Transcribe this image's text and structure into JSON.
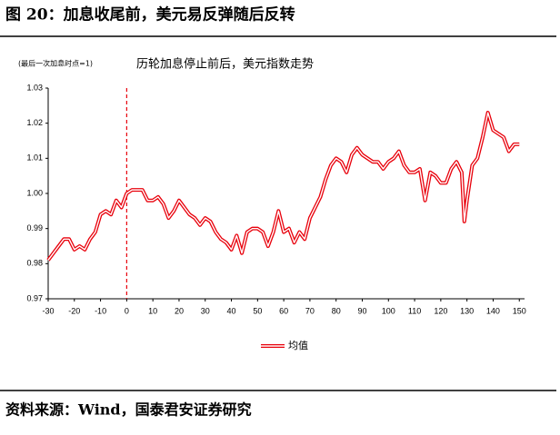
{
  "chart_data": {
    "type": "line",
    "title": "图 20：加息收尾前，美元易反弹随后反转",
    "subtitle": "历轮加息停止前后，美元指数走势",
    "annotation": "(最后一次加息时点=1)",
    "source": "资料来源：Wind，国泰君安证券研究",
    "marker_x": 0,
    "x": [
      -30,
      -28,
      -26,
      -24,
      -22,
      -20,
      -18,
      -16,
      -14,
      -12,
      -10,
      -8,
      -6,
      -4,
      -2,
      0,
      2,
      4,
      6,
      8,
      10,
      12,
      14,
      16,
      18,
      20,
      22,
      24,
      26,
      28,
      30,
      32,
      34,
      36,
      38,
      40,
      42,
      44,
      46,
      48,
      50,
      52,
      54,
      56,
      58,
      60,
      62,
      64,
      66,
      68,
      70,
      72,
      74,
      76,
      78,
      80,
      82,
      84,
      86,
      88,
      90,
      92,
      94,
      96,
      98,
      100,
      102,
      104,
      106,
      108,
      110,
      112,
      114,
      116,
      118,
      120,
      122,
      124,
      126,
      128,
      129,
      130,
      132,
      134,
      136,
      138,
      140,
      142,
      144,
      146,
      148,
      150
    ],
    "series": [
      {
        "name": "均值",
        "color": "#e8000b",
        "values": [
          0.981,
          0.983,
          0.985,
          0.987,
          0.987,
          0.984,
          0.985,
          0.984,
          0.987,
          0.989,
          0.994,
          0.995,
          0.994,
          0.998,
          0.996,
          1.0,
          1.001,
          1.001,
          1.001,
          0.998,
          0.998,
          0.999,
          0.997,
          0.993,
          0.995,
          0.998,
          0.996,
          0.994,
          0.993,
          0.991,
          0.993,
          0.992,
          0.989,
          0.987,
          0.986,
          0.984,
          0.988,
          0.983,
          0.989,
          0.99,
          0.99,
          0.989,
          0.985,
          0.989,
          0.995,
          0.989,
          0.99,
          0.986,
          0.989,
          0.987,
          0.993,
          0.996,
          0.999,
          1.004,
          1.008,
          1.01,
          1.009,
          1.006,
          1.011,
          1.013,
          1.011,
          1.01,
          1.009,
          1.009,
          1.007,
          1.009,
          1.01,
          1.012,
          1.008,
          1.006,
          1.006,
          1.007,
          0.998,
          1.006,
          1.005,
          1.003,
          1.003,
          1.007,
          1.009,
          1.006,
          0.992,
          0.998,
          1.008,
          1.01,
          1.016,
          1.023,
          1.018,
          1.017,
          1.016,
          1.012,
          1.014,
          1.014
        ]
      }
    ],
    "xlim": [
      -30,
      152
    ],
    "xticks": [
      -30,
      -20,
      -10,
      0,
      10,
      20,
      30,
      40,
      50,
      60,
      70,
      80,
      90,
      100,
      110,
      120,
      130,
      140,
      150
    ],
    "ylim": [
      0.97,
      1.03
    ],
    "yticks": [
      0.97,
      0.98,
      {
        "value": 0.99,
        "label": "0.99"
      },
      {
        "value": 1.0,
        "label": "1.00"
      },
      1.01,
      1.02,
      1.03
    ],
    "legend": "bottom"
  }
}
